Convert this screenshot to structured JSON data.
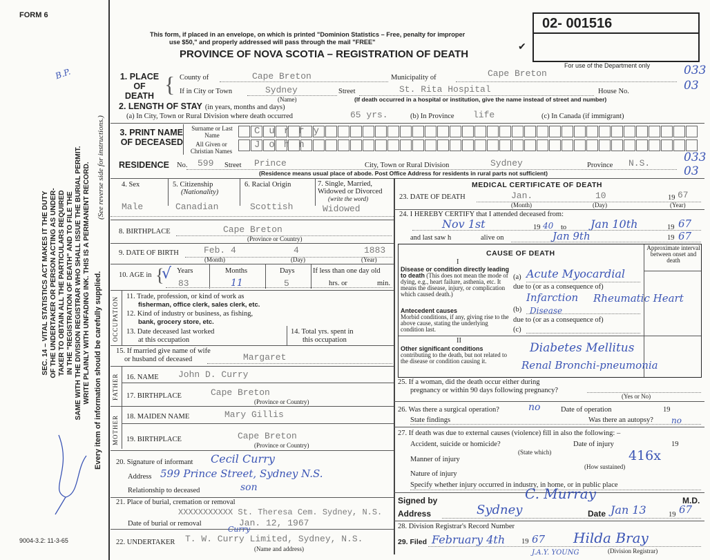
{
  "form_id": "FORM 6",
  "print_code": "9004-3.2: 11-3-65",
  "margin": {
    "statute": [
      "SEC. 14 – VITAL STATISTICS ACT MAKES IT THE DUTY",
      "OF THE UNDERTAKER OR PERSON ACTING AS UNDER-",
      "TAKER TO OBTAIN ALL THE PARTICULARS REQUIRED",
      "IN THE \"REGISTRATION OF DEATH\" AND TO FILE THE",
      "SAME WITH THE DIVISION REGISTRAR WHO SHALL ISSUE THE BURIAL PERMIT.",
      "WRITE PLAINLY WITH UNFADING INK. THIS IS A PERMANENT RECORD."
    ],
    "every_item": "Every item of information should be carefully supplied.",
    "see_reverse": "(See reverse side for instructions.)",
    "initials": "B.P."
  },
  "header": {
    "notice_1": "This form, if placed in an envelope, on which is printed \"Dominion Statistics – Free, penalty for improper",
    "notice_2": "use $50,\" and properly addressed will pass through the mail \"FREE\"",
    "title": "PROVINCE OF NOVA SCOTIA – REGISTRATION OF DEATH",
    "registration_number": "02- 001516",
    "dept_only": "For use of the Department only",
    "dept_codes": [
      "033",
      "03",
      "033",
      "03"
    ]
  },
  "place_of_death": {
    "label": "1. PLACE OF DEATH",
    "county_label": "County of",
    "county": "Cape Breton",
    "municipality_label": "Municipality of",
    "municipality": "Cape Breton",
    "city_label": "If in City or Town",
    "city": "Sydney",
    "name_hint": "(Name)",
    "street_label": "Street",
    "street": "St. Rita Hospital",
    "house_label": "House No.",
    "hospital_note": "(If death occurred in a hospital or institution, give the name instead of street and number)"
  },
  "length_of_stay": {
    "label": "2. LENGTH OF STAY",
    "label_hint": "(in years, months and days)",
    "a_label": "(a) In City, Town or Rural Division where death occurred",
    "a": "65 yrs.",
    "b_label": "(b) In Province",
    "b": "life",
    "c_label": "(c) In Canada (if immigrant)"
  },
  "name": {
    "label": "3. PRINT NAME OF DECEASED",
    "surname_label": "Surname or Last Name",
    "surname": "Curry",
    "given_label": "All Given or Christian Names",
    "given": "John"
  },
  "residence": {
    "label": "RESIDENCE",
    "no_label": "No.",
    "no": "599",
    "street_label": "Street",
    "street": "Prince",
    "city_label": "City, Town or Rural Division",
    "city": "Sydney",
    "province_label": "Province",
    "province": "N.S.",
    "note": "(Residence means usual place of abode. Post Office Address for residents in rural parts not sufficient)"
  },
  "personal": {
    "sex_label": "4. Sex",
    "sex": "Male",
    "citizenship_label": "5. Citizenship",
    "citizenship_hint": "(Nationality)",
    "citizenship": "Canadian",
    "racial_label": "6. Racial Origin",
    "racial": "Scottish",
    "marital_label": "7. Single, Married, Widowed or Divorced",
    "marital_hint": "(write the word)",
    "marital": "Widowed",
    "birthplace_label": "8. BIRTHPLACE",
    "birthplace": "Cape Breton",
    "province_hint": "(Province or Country)",
    "dob_label": "9. DATE OF BIRTH",
    "dob_month": "Feb. 4",
    "dob_day": "4",
    "dob_year": "1883",
    "month_hint": "(Month)",
    "day_hint": "(Day)",
    "year_hint": "(Year)",
    "age_label": "10. AGE in",
    "years_label": "Years",
    "years": "83",
    "months_label": "Months",
    "months": "11",
    "days_label": "Days",
    "days": "5",
    "less_day_label": "If less than one day old",
    "hrs_label": "hrs. or",
    "min_label": "min."
  },
  "occupation": {
    "side": "OCCUPATION",
    "q11": "11. Trade, profession, or kind of work as",
    "q11b": "fisherman, office clerk, sales clerk, etc.",
    "q12": "12. Kind of industry or business, as fishing,",
    "q12b": "bank, grocery store, etc.",
    "q13": "13. Date deceased last worked",
    "q13b": "at this occupation",
    "q14": "14. Total yrs. spent in",
    "q14b": "this occupation"
  },
  "spouse": {
    "label": "15. If married give name of wife",
    "label2": "or husband of deceased",
    "value": "Margaret"
  },
  "father": {
    "side": "FATHER",
    "name_label": "16. NAME",
    "name": "John D. Curry",
    "birthplace_label": "17. BIRTHPLACE",
    "birthplace": "Cape Breton"
  },
  "mother": {
    "side": "MOTHER",
    "maiden_label": "18. MAIDEN NAME",
    "maiden": "Mary Gillis",
    "birthplace_label": "19. BIRTHPLACE",
    "birthplace": "Cape Breton"
  },
  "informant": {
    "signature_label": "20. Signature of informant",
    "signature": "Cecil Curry",
    "address_label": "Address",
    "address": "599 Prince Street, Sydney N.S.",
    "relationship_label": "Relationship to deceased",
    "relationship": "son"
  },
  "burial": {
    "place_label": "21. Place of burial, cremation or removal",
    "place": "XXXXXXXXXXX St. Theresa Cem. Sydney, N.S.",
    "date_label": "Date of burial or removal",
    "date": "Jan. 12, 1967"
  },
  "undertaker": {
    "label": "22. UNDERTAKER",
    "value": "T. W. Curry Limited, Sydney, N.S.",
    "correction": "Curry",
    "hint": "(Name and address)"
  },
  "medical": {
    "title": "MEDICAL CERTIFICATE OF DEATH",
    "dod_label": "23. DATE OF DEATH",
    "dod_month": "Jan.",
    "dod_day": "10",
    "dod_year": "67",
    "prefix19": "19",
    "certify_label": "24. I HEREBY CERTIFY that I attended deceased from:",
    "from": "Nov 1st",
    "from_year": "40",
    "to_label": "to",
    "to": "Jan 10th",
    "to_year": "67",
    "last_saw_label": "and last saw h",
    "alive_label": "alive on",
    "last_saw": "Jan 9th",
    "last_saw_year": "67"
  },
  "cause": {
    "title": "CAUSE OF DEATH",
    "part1": "I",
    "interval": "Approximate interval between onset and death",
    "direct": "Disease or condition directly leading to death",
    "direct_note": "(This does not mean the mode of dying, e.g., heart failure, asthenia, etc. It means the disease, injury, or complication which caused death.)",
    "a": "Acute Myocardial",
    "due1": "due to (or as a consequence of)",
    "a2": "Infarction",
    "antecedent": "Antecedent causes",
    "antecedent_note": "Morbid conditions, if any, giving rise to the above cause, stating the underlying condition last.",
    "b": "Rheumatic Heart",
    "due2": "due to (or as a consequence of)",
    "b2": "Disease",
    "part2": "II",
    "other": "Other significant conditions",
    "other_note": "contributing to the death, but not related to the disease or condition causing it.",
    "other1": "Diabetes Mellitus",
    "other2": "Renal Bronchi-pneumonia",
    "a_tag": "(a)",
    "b_tag": "(b)",
    "c_tag": "(c)"
  },
  "q25": {
    "label": "25. If a woman, did the death occur either during",
    "label2": "pregnancy or within 90 days following pregnancy?",
    "hint": "(Yes or No)"
  },
  "q26": {
    "label": "26. Was there a surgical operation?",
    "value": "no",
    "date_label": "Date of operation",
    "prefix19": "19",
    "findings_label": "State findings",
    "autopsy_label": "Was there an autopsy?",
    "autopsy": "no"
  },
  "q27": {
    "label": "27. If death was due to external causes (violence) fill in also the following: –",
    "accident_label": "Accident, suicide or homicide?",
    "state_hint": "(State which)",
    "date_label": "Date of injury",
    "prefix19": "19",
    "manner_label": "Manner of injury",
    "manner": "416x",
    "how_hint": "(How sustained)",
    "nature_label": "Nature of injury",
    "specify_label": "Specify whether injury occurred in industry, in home, or in public place"
  },
  "signed": {
    "label": "Signed by",
    "md": "M.D.",
    "signature": "C. Murray",
    "address_label": "Address",
    "address": "Sydney",
    "date_label": "Date",
    "date": "Jan 13",
    "prefix19": "19",
    "year": "67"
  },
  "registrar": {
    "record_label": "28. Division Registrar's Record Number",
    "filed_label": "29. Filed",
    "filed": "February 4th",
    "prefix19": "19",
    "filed_year": "67",
    "signature": "Hilda Bray",
    "registrar_hint": "(Division Registrar)",
    "stamp": "J.A.Y. YOUNG"
  }
}
